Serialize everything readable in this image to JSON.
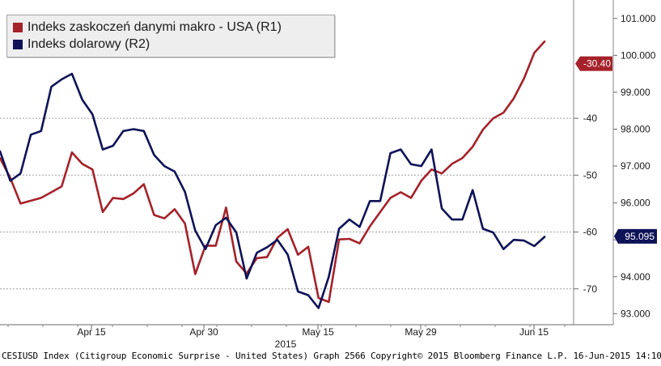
{
  "chart_data": {
    "type": "line",
    "title": "",
    "legend": {
      "placement": "top-left",
      "entries": [
        {
          "label": "Indeks zaskoczeń danymi makro - USA (R1)",
          "color": "#a5222a"
        },
        {
          "label": "Indeks dolarowy (R2)",
          "color": "#0e1257"
        }
      ]
    },
    "x_axis": {
      "tick_labels": [
        "Apr 15",
        "Apr 30",
        "May 15",
        "May 29",
        "Jun 15"
      ],
      "year_label": "2015"
    },
    "y_axis_r1": {
      "tick_labels": [
        "-40",
        "-50",
        "-60",
        "-70"
      ],
      "ylim": [
        -76.3,
        -19.2
      ],
      "last_value_label": "-30.40"
    },
    "y_axis_r2": {
      "tick_labels": [
        "101.000",
        "100.000",
        "99.000",
        "98.000",
        "97.000",
        "96.000",
        "95.000",
        "94.000",
        "93.000"
      ],
      "ylim": [
        92.7,
        101.5
      ],
      "last_value_label": "95.095"
    },
    "grid": true,
    "series": [
      {
        "name": "Indeks zaskoczeń danymi makro - USA (R1)",
        "axis": "r1",
        "color": "#a5222a",
        "x": [
          0,
          1,
          2,
          3,
          4,
          5,
          6,
          7,
          8,
          9,
          10,
          11,
          12,
          13,
          14,
          15,
          16,
          17,
          18,
          19,
          20,
          21,
          22,
          23,
          24,
          25,
          26,
          27,
          28,
          29,
          30,
          31,
          32,
          33,
          34,
          35,
          36,
          37,
          38,
          39,
          40,
          41,
          42,
          43,
          44,
          45,
          46,
          47,
          48,
          49,
          50,
          51,
          52,
          53,
          54
        ],
        "values": [
          -47.0,
          -50.5,
          -55.0,
          -54.5,
          -54.0,
          -53.0,
          -52.0,
          -46.0,
          -48.0,
          -49.0,
          -56.5,
          -54.0,
          -54.2,
          -53.2,
          -51.6,
          -57.0,
          -57.6,
          -56.0,
          -58.5,
          -67.4,
          -62.4,
          -62.4,
          -55.7,
          -65.2,
          -67.3,
          -64.6,
          -64.4,
          -61.0,
          -59.5,
          -64.0,
          -62.6,
          -71.6,
          -72.3,
          -61.3,
          -61.2,
          -62.0,
          -59.0,
          -56.5,
          -54.0,
          -53.0,
          -54.0,
          -51.0,
          -49.0,
          -49.7,
          -48.0,
          -47.0,
          -45.0,
          -42.0,
          -40.0,
          -39.0,
          -36.5,
          -33.0,
          -28.5,
          -26.5,
          null
        ],
        "last_value": -30.4
      },
      {
        "name": "Indeks dolarowy (R2)",
        "axis": "r2",
        "color": "#0e1257",
        "x": [
          0,
          1,
          2,
          3,
          4,
          5,
          6,
          7,
          8,
          9,
          10,
          11,
          12,
          13,
          14,
          15,
          16,
          17,
          18,
          19,
          20,
          21,
          22,
          23,
          24,
          25,
          26,
          27,
          28,
          29,
          30,
          31,
          32,
          33,
          34,
          35,
          36,
          37,
          38,
          39,
          40,
          41,
          42,
          43,
          44,
          45,
          46,
          47,
          48,
          49,
          50,
          51,
          52,
          53,
          54
        ],
        "values": [
          97.4,
          96.6,
          96.8,
          97.85,
          97.95,
          99.15,
          99.35,
          99.5,
          98.8,
          98.4,
          97.45,
          97.55,
          97.95,
          98.0,
          97.95,
          97.3,
          97.0,
          96.85,
          96.3,
          95.25,
          94.75,
          95.4,
          95.6,
          95.2,
          93.95,
          94.65,
          94.8,
          95.0,
          94.6,
          93.6,
          93.5,
          93.15,
          94.0,
          95.3,
          95.55,
          95.35,
          96.05,
          96.05,
          97.35,
          97.45,
          97.05,
          97.0,
          97.45,
          95.85,
          95.55,
          95.55,
          96.35,
          95.3,
          95.2,
          94.75,
          95.0,
          94.98,
          94.83,
          95.08,
          null
        ],
        "last_value": 95.095
      }
    ]
  },
  "footer_text": "CESIUSD Index (Citigroup Economic Surprise - United States) Graph 2566 Copyright© 2015 Bloomberg Finance L.P. 16-Jun-2015 14:10:23"
}
